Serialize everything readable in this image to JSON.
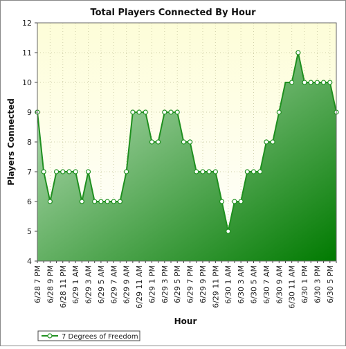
{
  "chart_data": {
    "type": "area",
    "title": "Total Players Connected By Hour",
    "xlabel": "Hour",
    "ylabel": "Players Connected",
    "ylim": [
      4,
      12
    ],
    "yticks": [
      4,
      5,
      6,
      7,
      8,
      9,
      10,
      11,
      12
    ],
    "grid": true,
    "legend_position": "bottom-left",
    "colors": {
      "plot_bg_top": "#fdfdd8",
      "plot_bg_bottom": "#ffffff",
      "line": "#1f8f1f",
      "fill_light": "#c8e6c8",
      "fill_dark": "#007a00",
      "grid": "#cfcfa8",
      "marker_fill": "#ffffff"
    },
    "x": [
      "6/28 7 PM",
      "6/28 8 PM",
      "6/28 9 PM",
      "6/28 10 PM",
      "6/28 11 PM",
      "6/29 12 AM",
      "6/29 1 AM",
      "6/29 2 AM",
      "6/29 3 AM",
      "6/29 4 AM",
      "6/29 5 AM",
      "6/29 6 AM",
      "6/29 7 AM",
      "6/29 8 AM",
      "6/29 9 AM",
      "6/29 10 AM",
      "6/29 11 AM",
      "6/29 12 PM",
      "6/29 1 PM",
      "6/29 2 PM",
      "6/29 3 PM",
      "6/29 4 PM",
      "6/29 5 PM",
      "6/29 6 PM",
      "6/29 7 PM",
      "6/29 8 PM",
      "6/29 9 PM",
      "6/29 10 PM",
      "6/29 11 PM",
      "6/30 12 AM",
      "6/30 1 AM",
      "6/30 2 AM",
      "6/30 3 AM",
      "6/30 4 AM",
      "6/30 5 AM",
      "6/30 6 AM",
      "6/30 7 AM",
      "6/30 8 AM",
      "6/30 9 AM",
      "6/30 10 AM",
      "6/30 11 AM",
      "6/30 12 PM",
      "6/30 1 PM",
      "6/30 2 PM",
      "6/30 3 PM",
      "6/30 4 PM",
      "6/30 5 PM",
      "6/30 6 PM"
    ],
    "xtick_labels": [
      "6/28 7 PM",
      "6/28 9 PM",
      "6/28 11 PM",
      "6/29 1 AM",
      "6/29 3 AM",
      "6/29 5 AM",
      "6/29 7 AM",
      "6/29 9 AM",
      "6/29 11 AM",
      "6/29 1 PM",
      "6/29 3 PM",
      "6/29 5 PM",
      "6/29 7 PM",
      "6/29 9 PM",
      "6/29 11 PM",
      "6/30 1 AM",
      "6/30 3 AM",
      "6/30 5 AM",
      "6/30 7 AM",
      "6/30 9 AM",
      "6/30 11 AM",
      "6/30 1 PM",
      "6/30 3 PM",
      "6/30 5 PM"
    ],
    "series": [
      {
        "name": "7 Degrees of Freedom",
        "values": [
          9,
          7,
          6,
          7,
          7,
          7,
          7,
          6,
          7,
          6,
          6,
          6,
          6,
          6,
          7,
          9,
          9,
          9,
          8,
          8,
          9,
          9,
          9,
          8,
          8,
          7,
          7,
          7,
          7,
          6,
          5,
          6,
          6,
          7,
          7,
          7,
          8,
          8,
          9,
          10,
          10,
          11,
          10,
          10,
          10,
          10,
          10,
          9
        ],
        "markers": [
          true,
          true,
          true,
          true,
          true,
          true,
          true,
          true,
          true,
          true,
          true,
          true,
          true,
          true,
          true,
          true,
          true,
          true,
          true,
          true,
          true,
          true,
          true,
          true,
          true,
          true,
          true,
          true,
          true,
          true,
          true,
          true,
          true,
          true,
          true,
          true,
          true,
          true,
          true,
          false,
          true,
          true,
          true,
          true,
          true,
          true,
          true,
          true
        ]
      }
    ]
  }
}
